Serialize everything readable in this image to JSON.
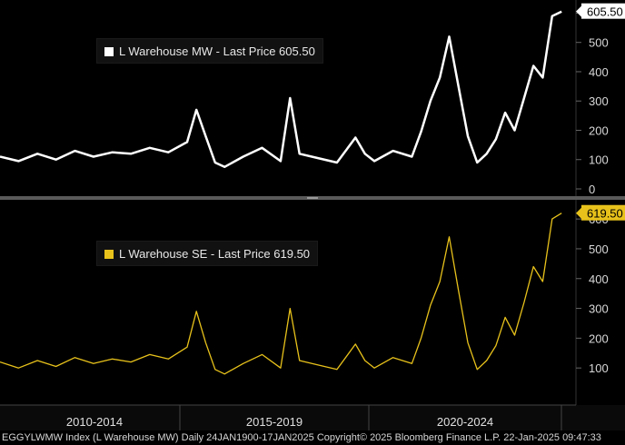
{
  "chart_data": [
    {
      "type": "line",
      "series": [
        {
          "name": "L Warehouse MW",
          "color": "#ffffff",
          "x": [
            "2010-01",
            "2010-07",
            "2011-01",
            "2011-07",
            "2012-01",
            "2012-07",
            "2013-01",
            "2013-07",
            "2014-01",
            "2014-07",
            "2015-01",
            "2015-04",
            "2015-07",
            "2015-10",
            "2016-01",
            "2016-07",
            "2017-01",
            "2017-07",
            "2017-10",
            "2018-01",
            "2018-07",
            "2019-01",
            "2019-07",
            "2019-10",
            "2020-01",
            "2020-07",
            "2021-01",
            "2021-04",
            "2021-07",
            "2021-10",
            "2022-01",
            "2022-04",
            "2022-07",
            "2022-10",
            "2023-01",
            "2023-04",
            "2023-07",
            "2023-10",
            "2024-01",
            "2024-04",
            "2024-07",
            "2024-10",
            "2025-01"
          ],
          "values": [
            110,
            95,
            120,
            100,
            130,
            110,
            125,
            120,
            140,
            125,
            160,
            270,
            180,
            90,
            75,
            110,
            140,
            95,
            310,
            120,
            105,
            90,
            175,
            120,
            95,
            130,
            110,
            195,
            300,
            380,
            520,
            350,
            180,
            90,
            120,
            170,
            260,
            200,
            310,
            420,
            380,
            590,
            605.5
          ]
        }
      ],
      "legend": {
        "text": "L Warehouse MW - Last Price 605.50",
        "placement": "top-left"
      },
      "last_price_label": "605.50",
      "y_ticks": [
        "600",
        "500",
        "400",
        "300",
        "200",
        "100",
        "0"
      ],
      "ylim": [
        0,
        620
      ]
    },
    {
      "type": "line",
      "series": [
        {
          "name": "L Warehouse SE",
          "color": "#e8c21b",
          "x": [
            "2010-01",
            "2010-07",
            "2011-01",
            "2011-07",
            "2012-01",
            "2012-07",
            "2013-01",
            "2013-07",
            "2014-01",
            "2014-07",
            "2015-01",
            "2015-04",
            "2015-07",
            "2015-10",
            "2016-01",
            "2016-07",
            "2017-01",
            "2017-07",
            "2017-10",
            "2018-01",
            "2018-07",
            "2019-01",
            "2019-07",
            "2019-10",
            "2020-01",
            "2020-07",
            "2021-01",
            "2021-04",
            "2021-07",
            "2021-10",
            "2022-01",
            "2022-04",
            "2022-07",
            "2022-10",
            "2023-01",
            "2023-04",
            "2023-07",
            "2023-10",
            "2024-01",
            "2024-04",
            "2024-07",
            "2024-10",
            "2025-01"
          ],
          "values": [
            120,
            100,
            125,
            105,
            135,
            115,
            130,
            120,
            145,
            130,
            170,
            290,
            185,
            95,
            80,
            115,
            145,
            100,
            300,
            125,
            110,
            95,
            180,
            125,
            100,
            135,
            115,
            200,
            310,
            390,
            540,
            360,
            185,
            95,
            125,
            175,
            270,
            210,
            320,
            440,
            390,
            600,
            619.5
          ]
        }
      ],
      "legend": {
        "text": "L Warehouse SE - Last Price 619.50",
        "placement": "top-left"
      },
      "last_price_label": "619.50",
      "y_ticks": [
        "600",
        "500",
        "400",
        "300",
        "200",
        "100"
      ],
      "ylim": [
        0,
        640
      ]
    }
  ],
  "x_axis": {
    "labels": [
      "2010-2014",
      "2015-2019",
      "2020-2024"
    ]
  },
  "footer": {
    "text": "EGGYLWMW Index (L Warehouse MW)  Daily 24JAN1900-17JAN2025  Copyright© 2025 Bloomberg Finance L.P.  22-Jan-2025 09:47:33"
  }
}
